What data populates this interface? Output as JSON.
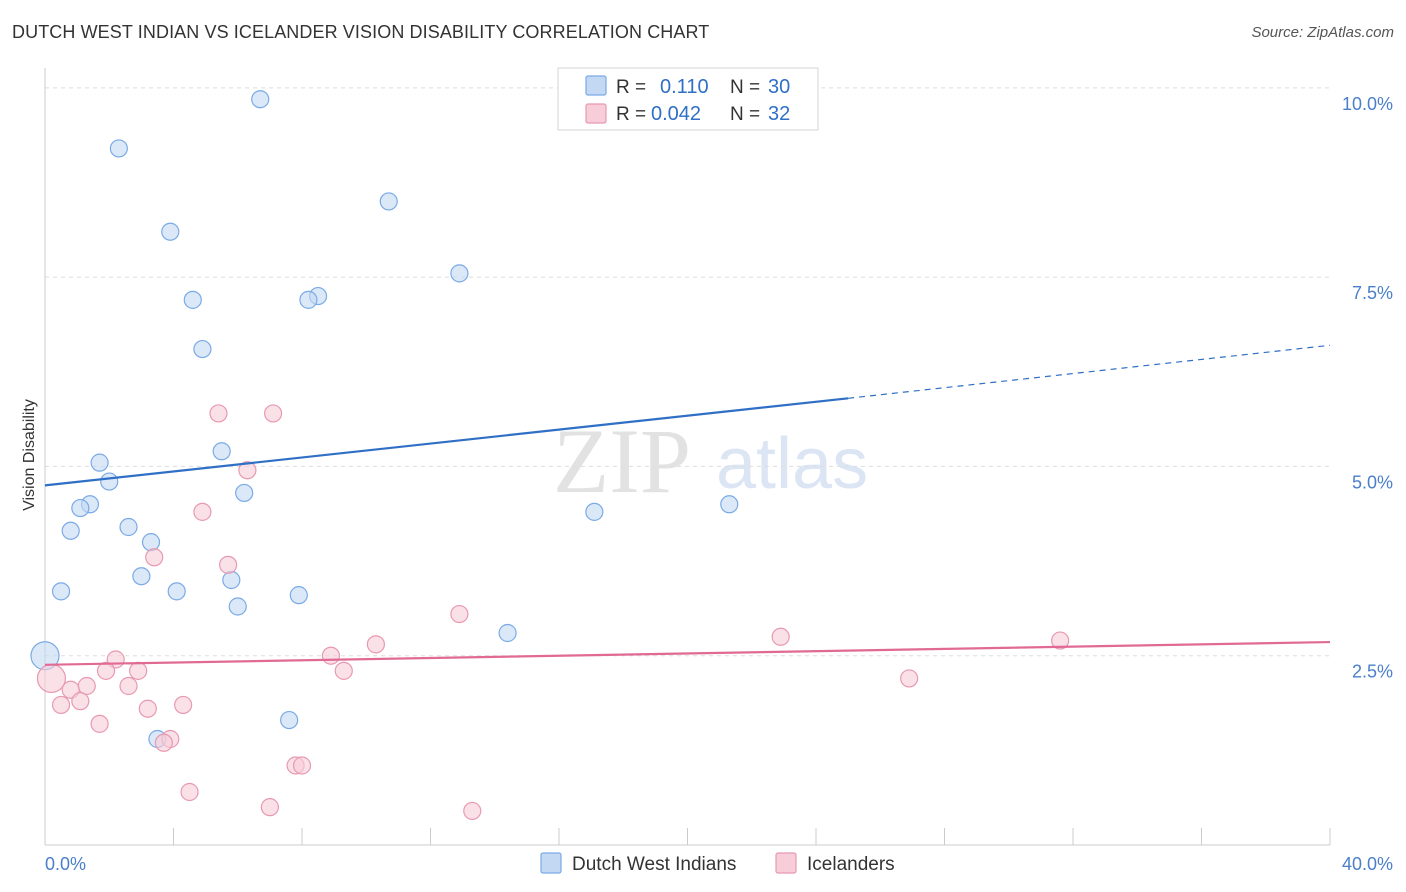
{
  "title": "DUTCH WEST INDIAN VS ICELANDER VISION DISABILITY CORRELATION CHART",
  "source": "Source: ZipAtlas.com",
  "watermark": {
    "zip": "ZIP",
    "atlas": "atlas"
  },
  "legend": {
    "r_label": "R =",
    "n_label": "N =",
    "series1": {
      "r": "0.110",
      "n": "30"
    },
    "series2": {
      "r": "0.042",
      "n": "32"
    }
  },
  "chart_data": {
    "type": "scatter",
    "title": "DUTCH WEST INDIAN VS ICELANDER VISION DISABILITY CORRELATION CHART",
    "xlabel": "",
    "ylabel": "Vision Disability",
    "xlim": [
      0,
      40
    ],
    "ylim": [
      0,
      10.5
    ],
    "x_tick_labels": [
      "0.0%",
      "40.0%"
    ],
    "y_ticks": [
      2.5,
      5.0,
      7.5,
      10.0
    ],
    "y_tick_labels": [
      "2.5%",
      "5.0%",
      "7.5%",
      "10.0%"
    ],
    "legend_position": "bottom",
    "series": [
      {
        "name": "Dutch West Indians",
        "color": "#7aaae6",
        "fill": "#c3d8f3",
        "trend": {
          "x0": 0,
          "y0": 4.75,
          "x1": 25,
          "y1": 5.9,
          "x_ext": 40,
          "y_ext": 6.6
        },
        "points": [
          [
            6.7,
            9.85
          ],
          [
            2.3,
            9.2
          ],
          [
            10.7,
            8.5
          ],
          [
            3.9,
            8.1
          ],
          [
            12.9,
            7.55
          ],
          [
            4.6,
            7.2
          ],
          [
            8.5,
            7.25
          ],
          [
            8.2,
            7.2
          ],
          [
            4.9,
            6.55
          ],
          [
            5.5,
            5.2
          ],
          [
            1.7,
            5.05
          ],
          [
            2.0,
            4.8
          ],
          [
            6.2,
            4.65
          ],
          [
            1.4,
            4.5
          ],
          [
            1.1,
            4.45
          ],
          [
            17.1,
            4.4
          ],
          [
            21.3,
            4.5
          ],
          [
            0.8,
            4.15
          ],
          [
            2.6,
            4.2
          ],
          [
            3.3,
            4.0
          ],
          [
            3.0,
            3.55
          ],
          [
            5.8,
            3.5
          ],
          [
            0.5,
            3.35
          ],
          [
            4.1,
            3.35
          ],
          [
            6.0,
            3.15
          ],
          [
            7.9,
            3.3
          ],
          [
            14.4,
            2.8
          ],
          [
            0.0,
            2.5
          ],
          [
            7.6,
            1.65
          ],
          [
            3.5,
            1.4
          ]
        ]
      },
      {
        "name": "Icelanders",
        "color": "#e899b2",
        "fill": "#f6cdd9",
        "trend": {
          "x0": 0,
          "y0": 2.38,
          "x1": 40,
          "y1": 2.68
        },
        "points": [
          [
            5.4,
            5.7
          ],
          [
            7.1,
            5.7
          ],
          [
            6.3,
            4.95
          ],
          [
            4.9,
            4.4
          ],
          [
            3.4,
            3.8
          ],
          [
            5.7,
            3.7
          ],
          [
            12.9,
            3.05
          ],
          [
            22.9,
            2.75
          ],
          [
            31.6,
            2.7
          ],
          [
            10.3,
            2.65
          ],
          [
            8.9,
            2.5
          ],
          [
            2.2,
            2.45
          ],
          [
            9.3,
            2.3
          ],
          [
            1.9,
            2.3
          ],
          [
            2.9,
            2.3
          ],
          [
            26.9,
            2.2
          ],
          [
            0.2,
            2.2
          ],
          [
            1.3,
            2.1
          ],
          [
            0.8,
            2.05
          ],
          [
            2.6,
            2.1
          ],
          [
            1.1,
            1.9
          ],
          [
            0.5,
            1.85
          ],
          [
            4.3,
            1.85
          ],
          [
            3.2,
            1.8
          ],
          [
            1.7,
            1.6
          ],
          [
            3.9,
            1.4
          ],
          [
            3.7,
            1.35
          ],
          [
            7.8,
            1.05
          ],
          [
            8.0,
            1.05
          ],
          [
            4.5,
            0.7
          ],
          [
            7.0,
            0.5
          ],
          [
            13.3,
            0.45
          ]
        ]
      }
    ]
  }
}
